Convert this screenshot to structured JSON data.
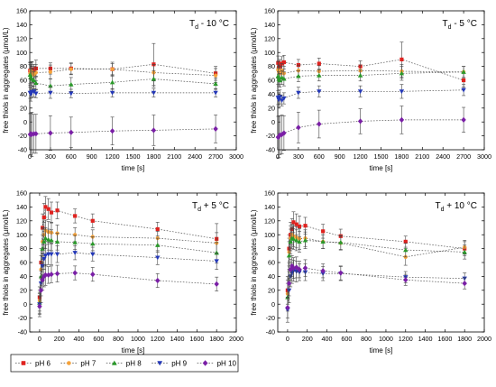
{
  "legend": [
    {
      "name": "pH 6",
      "color": "#e0221f",
      "marker": "square"
    },
    {
      "name": "pH 7",
      "color": "#f5a23a",
      "marker": "circle"
    },
    {
      "name": "pH 8",
      "color": "#2a9a2a",
      "marker": "triangle-up"
    },
    {
      "name": "pH 9",
      "color": "#2438b8",
      "marker": "triangle-down"
    },
    {
      "name": "pH 10",
      "color": "#7a1fa6",
      "marker": "diamond"
    }
  ],
  "chart_data": [
    {
      "type": "scatter",
      "title": "Td - 10 °C",
      "xlabel": "time [s]",
      "ylabel": "free thiols in aggregates (µmol/L)",
      "xlim": [
        0,
        3000
      ],
      "ylim": [
        -40,
        160
      ],
      "xticks": [
        0,
        300,
        600,
        900,
        1200,
        1500,
        1800,
        2100,
        2400,
        2700,
        3000
      ],
      "yticks": [
        -40,
        -20,
        0,
        20,
        40,
        60,
        80,
        100,
        120,
        140,
        160
      ],
      "grid": false,
      "series": [
        {
          "name": "pH 6",
          "x": [
            5,
            15,
            30,
            60,
            90,
            300,
            600,
            1200,
            1800,
            2700
          ],
          "y": [
            74,
            72,
            76,
            73,
            77,
            77,
            77,
            76,
            83,
            70
          ],
          "err": [
            12,
            10,
            10,
            10,
            12,
            8,
            8,
            8,
            30,
            10
          ]
        },
        {
          "name": "pH 7",
          "x": [
            5,
            15,
            30,
            60,
            90,
            300,
            600,
            1200,
            1800,
            2700
          ],
          "y": [
            70,
            74,
            72,
            68,
            71,
            72,
            76,
            76,
            71,
            67
          ],
          "err": [
            15,
            12,
            15,
            12,
            12,
            10,
            8,
            10,
            12,
            10
          ]
        },
        {
          "name": "pH 8",
          "x": [
            5,
            15,
            30,
            60,
            90,
            300,
            600,
            1200,
            1800,
            2700
          ],
          "y": [
            68,
            65,
            62,
            60,
            56,
            52,
            54,
            57,
            62,
            55
          ],
          "err": [
            15,
            12,
            15,
            12,
            10,
            10,
            10,
            10,
            12,
            8
          ]
        },
        {
          "name": "pH 9",
          "x": [
            5,
            15,
            30,
            60,
            90,
            300,
            600,
            1200,
            1800,
            2700
          ],
          "y": [
            42,
            40,
            43,
            44,
            41,
            42,
            41,
            42,
            42,
            42
          ],
          "err": [
            8,
            10,
            8,
            8,
            6,
            8,
            6,
            6,
            6,
            6
          ]
        },
        {
          "name": "pH 10",
          "x": [
            5,
            15,
            30,
            60,
            90,
            300,
            600,
            1200,
            1800,
            2700
          ],
          "y": [
            -18,
            -17,
            -18,
            -17,
            -17,
            -16,
            -15,
            -13,
            -12,
            -10
          ],
          "err": [
            30,
            30,
            32,
            28,
            28,
            25,
            22,
            20,
            22,
            20
          ]
        }
      ]
    },
    {
      "type": "scatter",
      "title": "Td - 5 °C",
      "xlabel": "time [s]",
      "ylabel": "free thiols in aggregates (µmol/L)",
      "xlim": [
        0,
        3000
      ],
      "ylim": [
        -40,
        160
      ],
      "xticks": [
        0,
        300,
        600,
        900,
        1200,
        1500,
        1800,
        2100,
        2400,
        2700,
        3000
      ],
      "yticks": [
        -40,
        -20,
        0,
        20,
        40,
        60,
        80,
        100,
        120,
        140,
        160
      ],
      "grid": false,
      "series": [
        {
          "name": "pH 6",
          "x": [
            5,
            15,
            30,
            60,
            90,
            300,
            600,
            1200,
            1800,
            2700
          ],
          "y": [
            85,
            78,
            80,
            84,
            86,
            82,
            84,
            80,
            90,
            60
          ],
          "err": [
            10,
            10,
            10,
            10,
            10,
            8,
            8,
            8,
            25,
            10
          ]
        },
        {
          "name": "pH 7",
          "x": [
            5,
            15,
            30,
            60,
            90,
            300,
            600,
            1200,
            1800,
            2700
          ],
          "y": [
            75,
            72,
            70,
            74,
            70,
            74,
            73,
            74,
            73,
            72
          ],
          "err": [
            12,
            10,
            10,
            10,
            10,
            8,
            8,
            8,
            10,
            8
          ]
        },
        {
          "name": "pH 8",
          "x": [
            5,
            15,
            30,
            60,
            90,
            300,
            600,
            1200,
            1800,
            2700
          ],
          "y": [
            66,
            62,
            60,
            64,
            62,
            66,
            67,
            67,
            70,
            72
          ],
          "err": [
            12,
            10,
            10,
            10,
            10,
            8,
            8,
            8,
            10,
            8
          ]
        },
        {
          "name": "pH 9",
          "x": [
            5,
            15,
            30,
            60,
            90,
            300,
            600,
            1200,
            1800,
            2700
          ],
          "y": [
            35,
            32,
            36,
            31,
            34,
            42,
            44,
            44,
            44,
            46
          ],
          "err": [
            10,
            10,
            10,
            8,
            8,
            8,
            8,
            8,
            10,
            8
          ]
        },
        {
          "name": "pH 10",
          "x": [
            5,
            15,
            30,
            60,
            90,
            300,
            600,
            1200,
            1800,
            2700
          ],
          "y": [
            -22,
            -21,
            -19,
            -18,
            -16,
            -8,
            -3,
            1,
            3,
            3
          ],
          "err": [
            30,
            30,
            28,
            28,
            25,
            22,
            20,
            18,
            20,
            18
          ]
        }
      ]
    },
    {
      "type": "scatter",
      "title": "Td + 5 °C",
      "xlabel": "time [s]",
      "ylabel": "free thiols in aggregates (µmol/L)",
      "xlim": [
        -100,
        2000
      ],
      "ylim": [
        -40,
        160
      ],
      "xticks": [
        0,
        200,
        400,
        600,
        800,
        1000,
        1200,
        1400,
        1600,
        1800,
        2000
      ],
      "yticks": [
        -40,
        -20,
        0,
        20,
        40,
        60,
        80,
        100,
        120,
        140,
        160
      ],
      "grid": false,
      "series": [
        {
          "name": "pH 6",
          "x": [
            0,
            15,
            30,
            45,
            60,
            90,
            120,
            180,
            360,
            540,
            1200,
            1800
          ],
          "y": [
            10,
            60,
            110,
            125,
            140,
            137,
            132,
            135,
            127,
            120,
            108,
            94
          ],
          "err": [
            15,
            20,
            20,
            20,
            15,
            15,
            15,
            12,
            10,
            10,
            10,
            22
          ]
        },
        {
          "name": "pH 7",
          "x": [
            0,
            15,
            30,
            45,
            60,
            90,
            120,
            180,
            360,
            540,
            1200,
            1800
          ],
          "y": [
            5,
            50,
            90,
            100,
            106,
            104,
            103,
            102,
            100,
            97,
            95,
            88
          ],
          "err": [
            15,
            20,
            20,
            18,
            15,
            15,
            15,
            12,
            10,
            10,
            10,
            15
          ]
        },
        {
          "name": "pH 8",
          "x": [
            0,
            15,
            30,
            45,
            60,
            90,
            120,
            180,
            360,
            540,
            1200,
            1800
          ],
          "y": [
            2,
            40,
            80,
            90,
            95,
            93,
            92,
            90,
            89,
            87,
            85,
            74
          ],
          "err": [
            15,
            20,
            20,
            18,
            15,
            15,
            15,
            12,
            10,
            10,
            10,
            15
          ]
        },
        {
          "name": "pH 9",
          "x": [
            0,
            15,
            30,
            45,
            60,
            90,
            120,
            180,
            360,
            540,
            1200,
            1800
          ],
          "y": [
            0,
            30,
            55,
            65,
            70,
            72,
            72,
            72,
            74,
            72,
            67,
            62
          ],
          "err": [
            15,
            18,
            18,
            15,
            15,
            15,
            15,
            12,
            10,
            10,
            10,
            12
          ]
        },
        {
          "name": "pH 10",
          "x": [
            0,
            15,
            30,
            45,
            60,
            90,
            120,
            180,
            360,
            540,
            1200,
            1800
          ],
          "y": [
            -3,
            20,
            35,
            40,
            42,
            42,
            43,
            44,
            45,
            43,
            34,
            29
          ],
          "err": [
            15,
            18,
            15,
            15,
            15,
            12,
            12,
            12,
            10,
            10,
            10,
            10
          ]
        }
      ]
    },
    {
      "type": "scatter",
      "title": "Td + 10 °C",
      "xlabel": "time [s]",
      "ylabel": "free thiols in aggregates (µmol/L)",
      "xlim": [
        -100,
        2000
      ],
      "ylim": [
        -40,
        160
      ],
      "xticks": [
        0,
        200,
        400,
        600,
        800,
        1000,
        1200,
        1400,
        1600,
        1800,
        2000
      ],
      "yticks": [
        -40,
        -20,
        0,
        20,
        40,
        60,
        80,
        100,
        120,
        140,
        160
      ],
      "grid": false,
      "series": [
        {
          "name": "pH 6",
          "x": [
            0,
            15,
            30,
            45,
            60,
            90,
            120,
            180,
            360,
            540,
            1200,
            1800
          ],
          "y": [
            20,
            80,
            100,
            108,
            118,
            115,
            112,
            113,
            105,
            98,
            90,
            80
          ],
          "err": [
            20,
            20,
            18,
            15,
            15,
            15,
            15,
            12,
            10,
            10,
            8,
            10
          ]
        },
        {
          "name": "pH 7",
          "x": [
            0,
            15,
            30,
            45,
            60,
            90,
            120,
            180,
            360,
            540,
            1200,
            1800
          ],
          "y": [
            15,
            75,
            95,
            100,
            98,
            96,
            94,
            95,
            90,
            88,
            68,
            82
          ],
          "err": [
            20,
            20,
            18,
            15,
            15,
            15,
            15,
            12,
            10,
            10,
            12,
            10
          ]
        },
        {
          "name": "pH 8",
          "x": [
            0,
            15,
            30,
            45,
            60,
            90,
            120,
            180,
            360,
            540,
            1200,
            1800
          ],
          "y": [
            10,
            70,
            90,
            95,
            94,
            92,
            90,
            92,
            90,
            89,
            78,
            75
          ],
          "err": [
            20,
            20,
            18,
            15,
            15,
            15,
            15,
            12,
            10,
            10,
            10,
            10
          ]
        },
        {
          "name": "pH 9",
          "x": [
            0,
            15,
            30,
            45,
            60,
            90,
            120,
            180,
            360,
            540,
            1200,
            1800
          ],
          "y": [
            -8,
            20,
            40,
            45,
            48,
            47,
            46,
            46,
            44,
            44,
            39,
            37
          ],
          "err": [
            18,
            18,
            15,
            15,
            15,
            15,
            12,
            12,
            10,
            10,
            8,
            8
          ]
        },
        {
          "name": "pH 10",
          "x": [
            0,
            15,
            30,
            45,
            60,
            90,
            120,
            180,
            360,
            540,
            1200,
            1800
          ],
          "y": [
            -5,
            30,
            50,
            55,
            52,
            53,
            50,
            52,
            48,
            45,
            35,
            30
          ],
          "err": [
            15,
            18,
            15,
            15,
            15,
            15,
            12,
            12,
            10,
            10,
            8,
            8
          ]
        }
      ]
    }
  ]
}
